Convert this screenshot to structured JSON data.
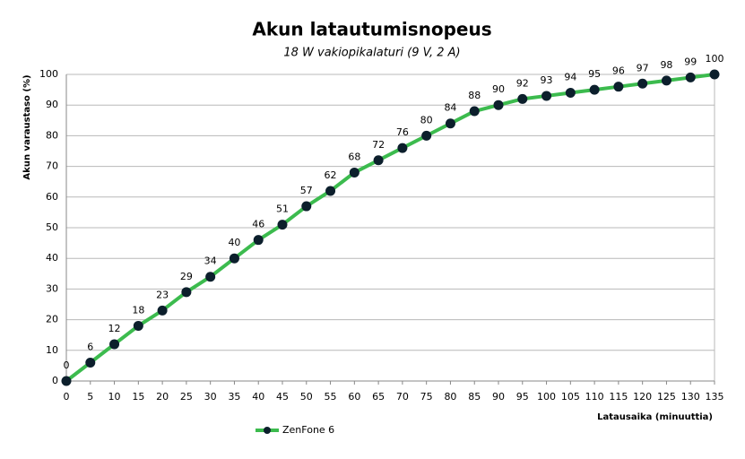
{
  "chart_data": {
    "type": "line",
    "title": "Akun latautumisnopeus",
    "subtitle": "18 W vakiopikalaturi (9 V, 2 A)",
    "x_label": "Latausaika  (minuuttia)",
    "y_label": "Akun varaustaso (%)",
    "x": [
      0,
      5,
      10,
      15,
      20,
      25,
      30,
      35,
      40,
      45,
      50,
      55,
      60,
      65,
      70,
      75,
      80,
      85,
      90,
      95,
      100,
      105,
      110,
      115,
      120,
      125,
      130,
      135
    ],
    "series": [
      {
        "name": "ZenFone 6",
        "color": "#3cbb4e",
        "marker_color": "#0c1f2c",
        "values": [
          0,
          6,
          12,
          18,
          23,
          29,
          34,
          40,
          46,
          51,
          57,
          62,
          68,
          72,
          76,
          80,
          84,
          88,
          90,
          92,
          93,
          94,
          95,
          96,
          97,
          98,
          99,
          100
        ]
      }
    ],
    "xlim": [
      0,
      135
    ],
    "xticks": [
      0,
      5,
      10,
      15,
      20,
      25,
      30,
      35,
      40,
      45,
      50,
      55,
      60,
      65,
      70,
      75,
      80,
      85,
      90,
      95,
      100,
      105,
      110,
      115,
      120,
      125,
      130,
      135
    ],
    "ylim": [
      0,
      100
    ],
    "yticks": [
      0,
      10,
      20,
      30,
      40,
      50,
      60,
      70,
      80,
      90,
      100
    ],
    "grid": true,
    "legend": "bottom-left"
  }
}
